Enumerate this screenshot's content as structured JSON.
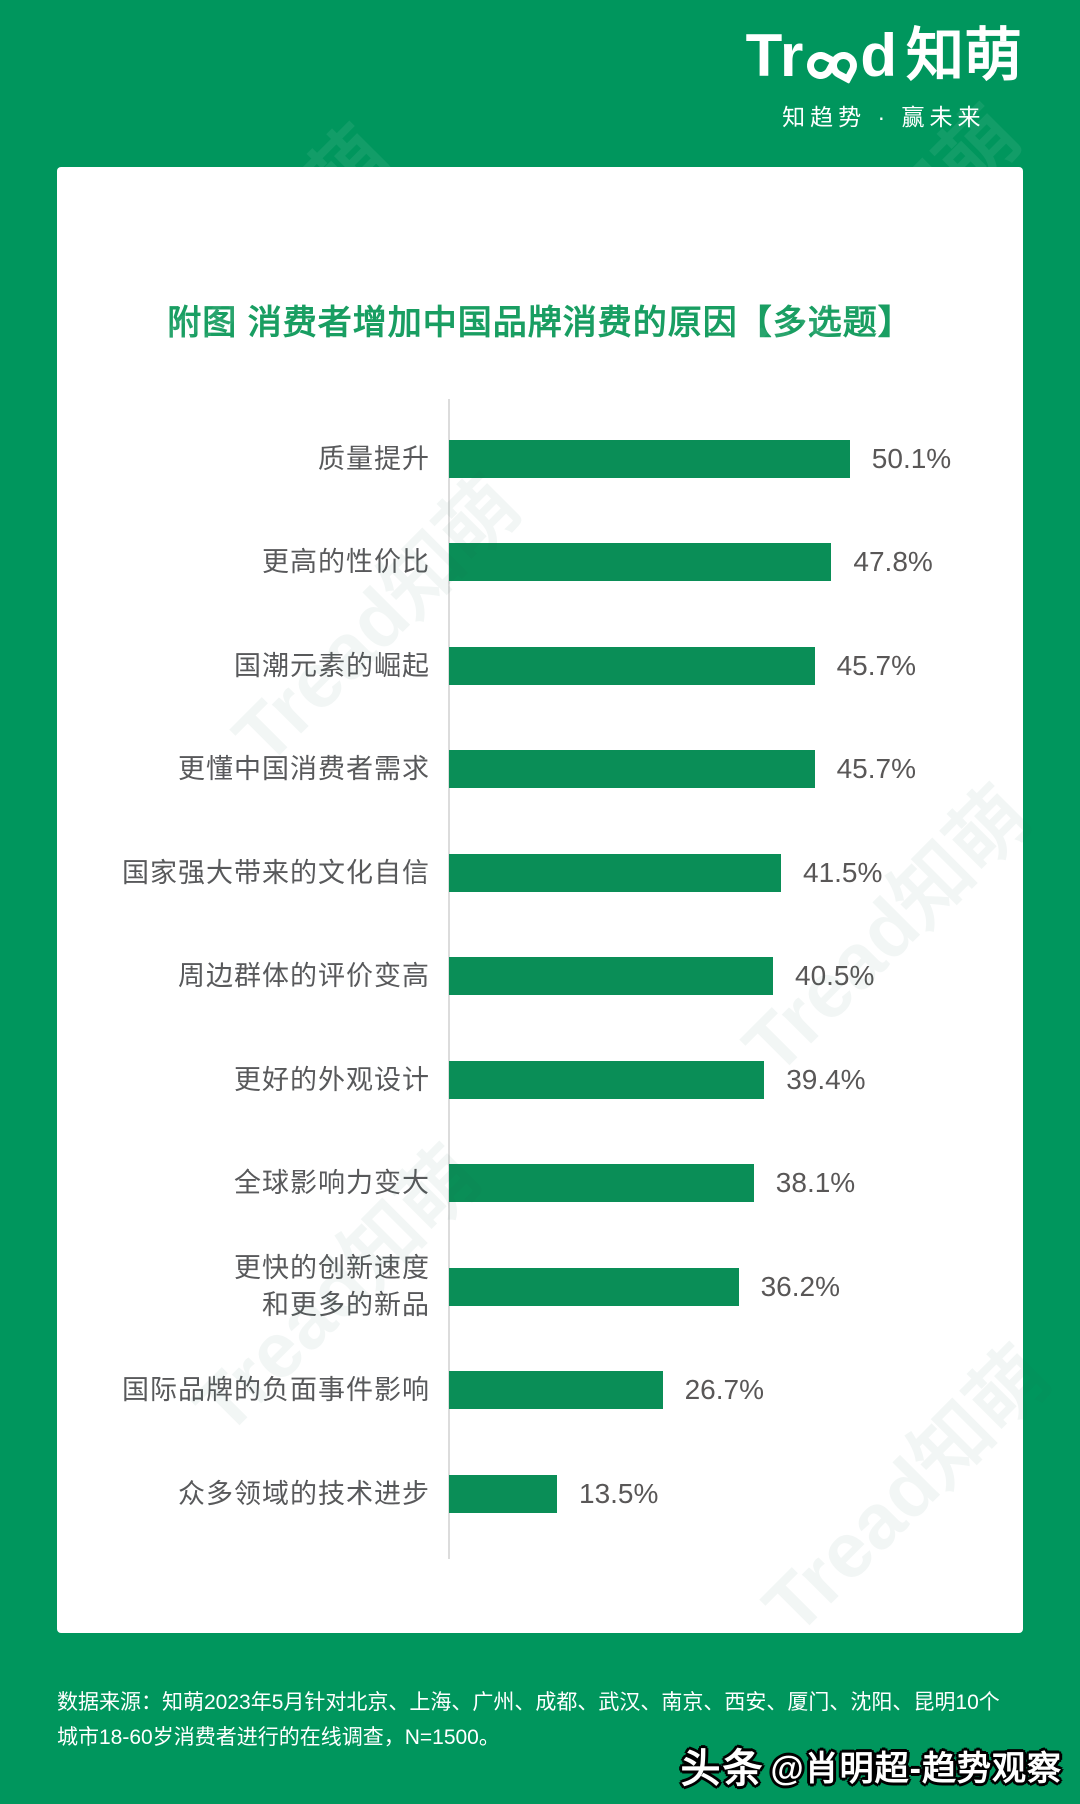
{
  "colors": {
    "background_green": "#00965d",
    "bar_green": "#0a8e57",
    "title_green": "#199e62",
    "label_gray": "#58595b",
    "value_gray": "#595757",
    "axis_gray": "#dcdcdc",
    "card_white": "#ffffff"
  },
  "header": {
    "logo_en": "Tread",
    "logo_en_part1": "Tr",
    "logo_en_part2": "d",
    "logo_cn": "知萌",
    "tagline": "知趋势 · 赢未来"
  },
  "watermark": {
    "text": "Tread知萌"
  },
  "chart_data": {
    "type": "bar",
    "orientation": "horizontal",
    "title": "附图 消费者增加中国品牌消费的原因【多选题】",
    "categories": [
      "质量提升",
      "更高的性价比",
      "国潮元素的崛起",
      "更懂中国消费者需求",
      "国家强大带来的文化自信",
      "周边群体的评价变高",
      "更好的外观设计",
      "全球影响力变大",
      "更快的创新速度\n和更多的新品",
      "国际品牌的负面事件影响",
      "众多领域的技术进步"
    ],
    "values": [
      50.1,
      47.8,
      45.7,
      45.7,
      41.5,
      40.5,
      39.4,
      38.1,
      36.2,
      26.7,
      13.5
    ],
    "value_labels": [
      "50.1%",
      "47.8%",
      "45.7%",
      "45.7%",
      "41.5%",
      "40.5%",
      "39.4%",
      "38.1%",
      "36.2%",
      "26.7%",
      "13.5%"
    ],
    "unit": "%",
    "xlim": [
      0,
      56
    ],
    "grid": false,
    "legend": false,
    "bar_color": "#0a8e57"
  },
  "footer": {
    "source_text": "数据来源：知萌2023年5月针对北京、上海、广州、成都、武汉、南京、西安、厦门、沈阳、昆明10个城市18-60岁消费者进行的在线调查，N=1500。",
    "badge_platform": "头条",
    "badge_handle": "@肖明超-趋势观察"
  }
}
